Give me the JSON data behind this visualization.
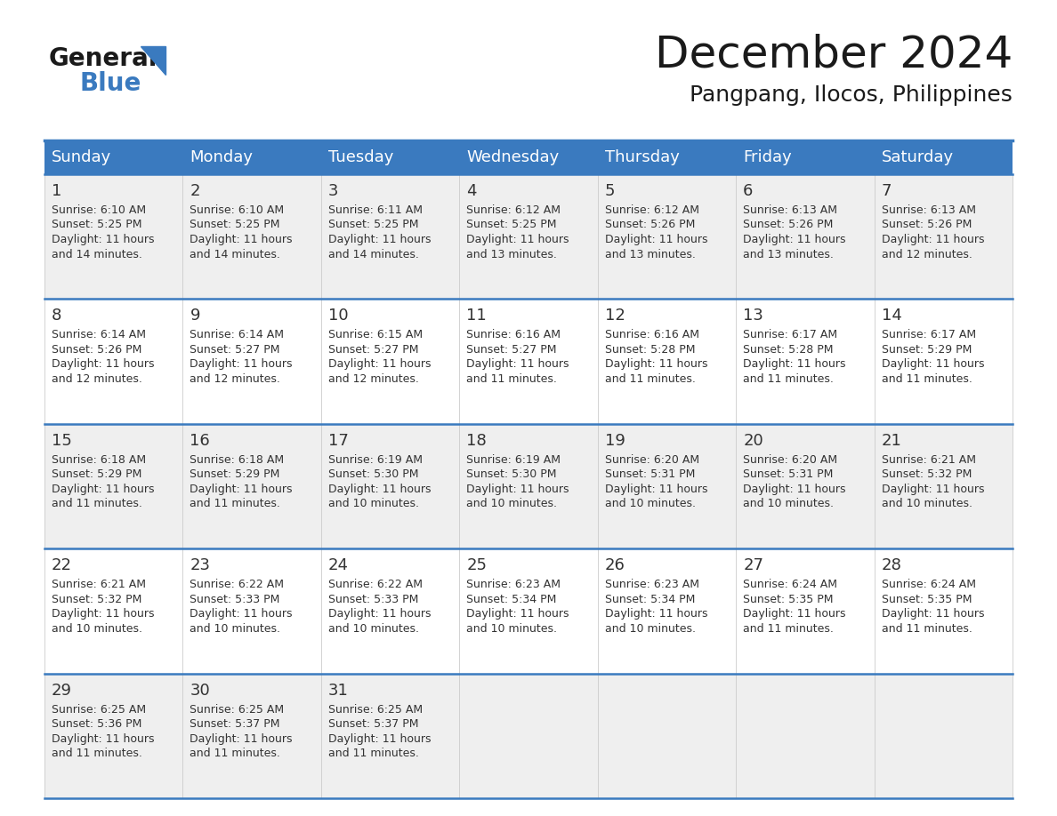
{
  "title": "December 2024",
  "subtitle": "Pangpang, Ilocos, Philippines",
  "header_color": "#3a7abf",
  "header_text_color": "#ffffff",
  "cell_bg_odd": "#efefef",
  "cell_bg_even": "#ffffff",
  "border_color": "#3a7abf",
  "days_of_week": [
    "Sunday",
    "Monday",
    "Tuesday",
    "Wednesday",
    "Thursday",
    "Friday",
    "Saturday"
  ],
  "calendar_data": [
    [
      {
        "day": 1,
        "sunrise": "6:10 AM",
        "sunset": "5:25 PM",
        "daylight_minutes": "14"
      },
      {
        "day": 2,
        "sunrise": "6:10 AM",
        "sunset": "5:25 PM",
        "daylight_minutes": "14"
      },
      {
        "day": 3,
        "sunrise": "6:11 AM",
        "sunset": "5:25 PM",
        "daylight_minutes": "14"
      },
      {
        "day": 4,
        "sunrise": "6:12 AM",
        "sunset": "5:25 PM",
        "daylight_minutes": "13"
      },
      {
        "day": 5,
        "sunrise": "6:12 AM",
        "sunset": "5:26 PM",
        "daylight_minutes": "13"
      },
      {
        "day": 6,
        "sunrise": "6:13 AM",
        "sunset": "5:26 PM",
        "daylight_minutes": "13"
      },
      {
        "day": 7,
        "sunrise": "6:13 AM",
        "sunset": "5:26 PM",
        "daylight_minutes": "12"
      }
    ],
    [
      {
        "day": 8,
        "sunrise": "6:14 AM",
        "sunset": "5:26 PM",
        "daylight_minutes": "12"
      },
      {
        "day": 9,
        "sunrise": "6:14 AM",
        "sunset": "5:27 PM",
        "daylight_minutes": "12"
      },
      {
        "day": 10,
        "sunrise": "6:15 AM",
        "sunset": "5:27 PM",
        "daylight_minutes": "12"
      },
      {
        "day": 11,
        "sunrise": "6:16 AM",
        "sunset": "5:27 PM",
        "daylight_minutes": "11"
      },
      {
        "day": 12,
        "sunrise": "6:16 AM",
        "sunset": "5:28 PM",
        "daylight_minutes": "11"
      },
      {
        "day": 13,
        "sunrise": "6:17 AM",
        "sunset": "5:28 PM",
        "daylight_minutes": "11"
      },
      {
        "day": 14,
        "sunrise": "6:17 AM",
        "sunset": "5:29 PM",
        "daylight_minutes": "11"
      }
    ],
    [
      {
        "day": 15,
        "sunrise": "6:18 AM",
        "sunset": "5:29 PM",
        "daylight_minutes": "11"
      },
      {
        "day": 16,
        "sunrise": "6:18 AM",
        "sunset": "5:29 PM",
        "daylight_minutes": "11"
      },
      {
        "day": 17,
        "sunrise": "6:19 AM",
        "sunset": "5:30 PM",
        "daylight_minutes": "10"
      },
      {
        "day": 18,
        "sunrise": "6:19 AM",
        "sunset": "5:30 PM",
        "daylight_minutes": "10"
      },
      {
        "day": 19,
        "sunrise": "6:20 AM",
        "sunset": "5:31 PM",
        "daylight_minutes": "10"
      },
      {
        "day": 20,
        "sunrise": "6:20 AM",
        "sunset": "5:31 PM",
        "daylight_minutes": "10"
      },
      {
        "day": 21,
        "sunrise": "6:21 AM",
        "sunset": "5:32 PM",
        "daylight_minutes": "10"
      }
    ],
    [
      {
        "day": 22,
        "sunrise": "6:21 AM",
        "sunset": "5:32 PM",
        "daylight_minutes": "10"
      },
      {
        "day": 23,
        "sunrise": "6:22 AM",
        "sunset": "5:33 PM",
        "daylight_minutes": "10"
      },
      {
        "day": 24,
        "sunrise": "6:22 AM",
        "sunset": "5:33 PM",
        "daylight_minutes": "10"
      },
      {
        "day": 25,
        "sunrise": "6:23 AM",
        "sunset": "5:34 PM",
        "daylight_minutes": "10"
      },
      {
        "day": 26,
        "sunrise": "6:23 AM",
        "sunset": "5:34 PM",
        "daylight_minutes": "10"
      },
      {
        "day": 27,
        "sunrise": "6:24 AM",
        "sunset": "5:35 PM",
        "daylight_minutes": "11"
      },
      {
        "day": 28,
        "sunrise": "6:24 AM",
        "sunset": "5:35 PM",
        "daylight_minutes": "11"
      }
    ],
    [
      {
        "day": 29,
        "sunrise": "6:25 AM",
        "sunset": "5:36 PM",
        "daylight_minutes": "11"
      },
      {
        "day": 30,
        "sunrise": "6:25 AM",
        "sunset": "5:37 PM",
        "daylight_minutes": "11"
      },
      {
        "day": 31,
        "sunrise": "6:25 AM",
        "sunset": "5:37 PM",
        "daylight_minutes": "11"
      },
      null,
      null,
      null,
      null
    ]
  ],
  "title_fontsize": 36,
  "subtitle_fontsize": 18,
  "day_header_fontsize": 13,
  "day_number_fontsize": 13,
  "cell_text_fontsize": 9
}
